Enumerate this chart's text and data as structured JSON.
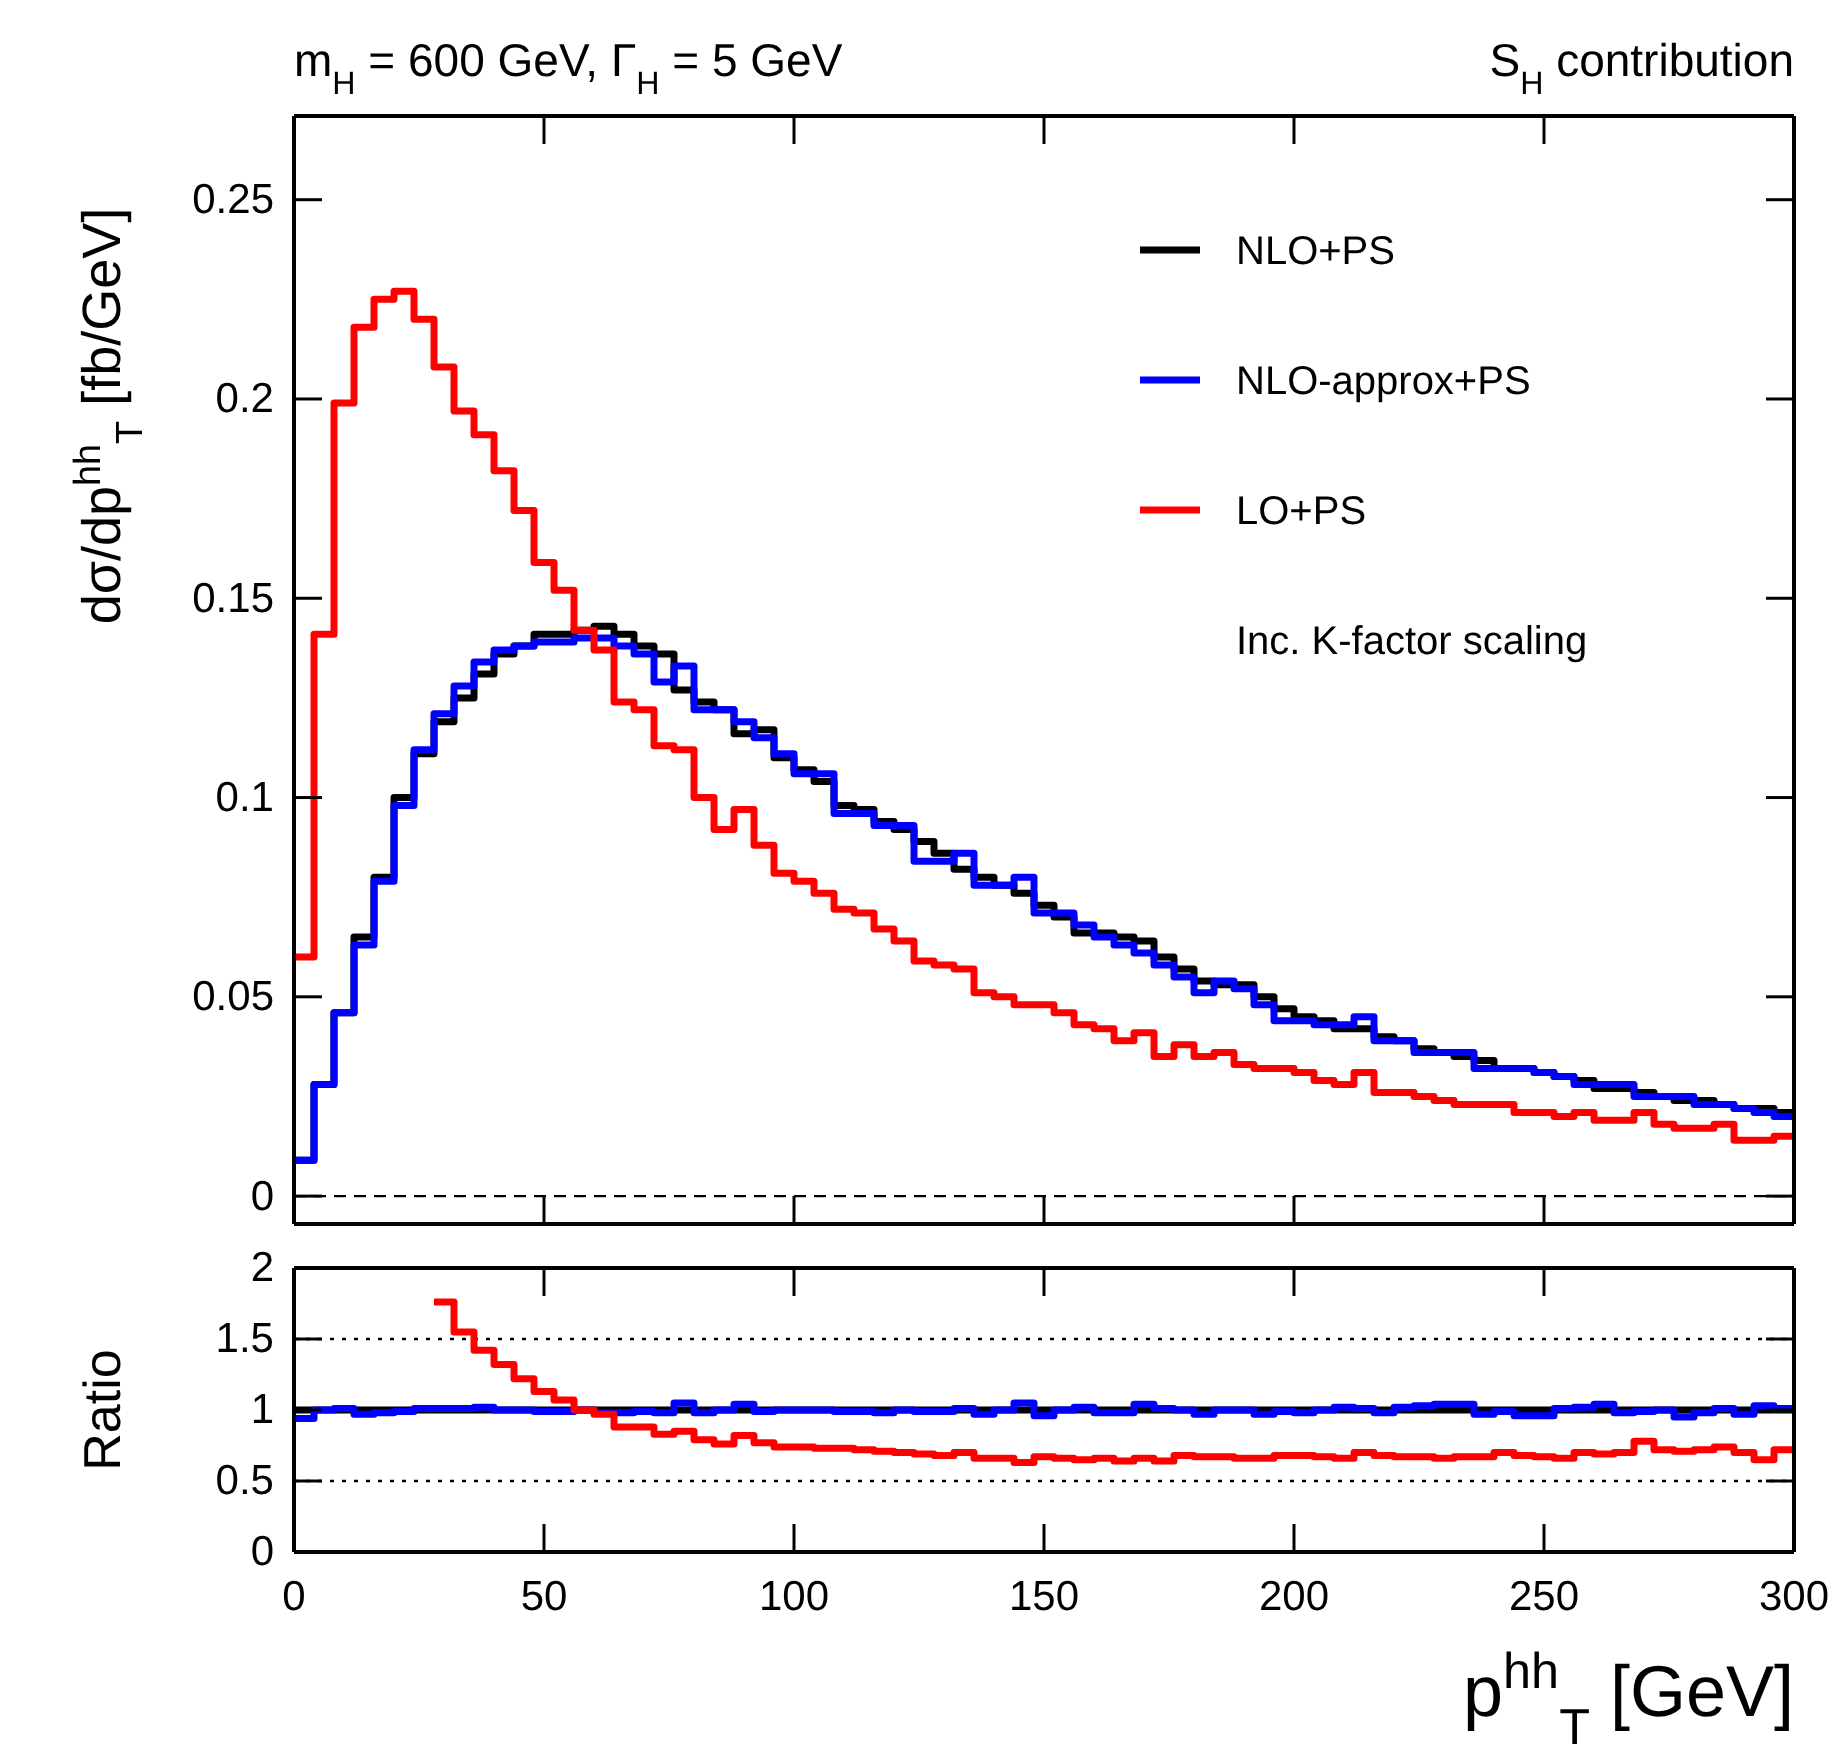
{
  "chart_data": [
    {
      "type": "histogram",
      "title": "m$_{H}$ = 600 GeV, Γ$_{H}$ = 5 GeV",
      "subtitle": "S$_{H}$ contribution",
      "ylabel": "dσ/dp$^{hh}$$_{T}$ [fb/GeV]",
      "annotations": [
        "Inc. K-factor scaling"
      ],
      "legend": "top right",
      "tick_labels": "y",
      "xlim": [
        0,
        300
      ],
      "xticks": [
        0,
        50,
        100,
        150,
        200,
        250,
        300
      ],
      "ylim": [
        -0.007,
        0.271
      ],
      "yticks": [
        0,
        0.05,
        0.1,
        0.15,
        0.2,
        0.25
      ],
      "ref_lines": [
        {
          "axis": "y",
          "value": 0,
          "line_style": "dashed",
          "color": "#000000"
        }
      ],
      "bins": [
        0,
        4,
        8,
        12,
        16,
        20,
        24,
        28,
        32,
        36,
        40,
        44,
        48,
        52,
        56,
        60,
        64,
        68,
        72,
        76,
        80,
        84,
        88,
        92,
        96,
        100,
        104,
        108,
        112,
        116,
        120,
        124,
        128,
        132,
        136,
        140,
        144,
        148,
        152,
        156,
        160,
        164,
        168,
        172,
        176,
        180,
        184,
        188,
        192,
        196,
        200,
        204,
        208,
        212,
        216,
        220,
        224,
        228,
        232,
        236,
        240,
        244,
        248,
        252,
        256,
        260,
        264,
        268,
        272,
        276,
        280,
        284,
        288,
        292,
        296,
        300
      ],
      "series": [
        {
          "name": "NLO+PS",
          "color": "#000000",
          "values": [
            0.009,
            0.028,
            0.046,
            0.065,
            0.08,
            0.1,
            0.111,
            0.119,
            0.125,
            0.131,
            0.136,
            0.138,
            0.141,
            0.141,
            0.142,
            0.143,
            0.141,
            0.138,
            0.136,
            0.127,
            0.124,
            0.122,
            0.116,
            0.117,
            0.11,
            0.107,
            0.104,
            0.098,
            0.097,
            0.094,
            0.092,
            0.089,
            0.086,
            0.082,
            0.08,
            0.078,
            0.076,
            0.073,
            0.07,
            0.066,
            0.066,
            0.065,
            0.064,
            0.06,
            0.057,
            0.054,
            0.053,
            0.053,
            0.05,
            0.047,
            0.045,
            0.044,
            0.042,
            0.042,
            0.04,
            0.039,
            0.037,
            0.036,
            0.035,
            0.034,
            0.032,
            0.032,
            0.031,
            0.03,
            0.029,
            0.027,
            0.027,
            0.026,
            0.025,
            0.024,
            0.024,
            0.023,
            0.022,
            0.022,
            0.021
          ]
        },
        {
          "name": "NLO-approx+PS",
          "color": "#0000ff",
          "values": [
            0.009,
            0.028,
            0.046,
            0.063,
            0.079,
            0.098,
            0.112,
            0.121,
            0.128,
            0.134,
            0.137,
            0.138,
            0.139,
            0.139,
            0.14,
            0.14,
            0.138,
            0.136,
            0.129,
            0.133,
            0.122,
            0.122,
            0.119,
            0.115,
            0.111,
            0.106,
            0.106,
            0.096,
            0.096,
            0.093,
            0.093,
            0.084,
            0.084,
            0.086,
            0.078,
            0.078,
            0.08,
            0.071,
            0.071,
            0.068,
            0.065,
            0.063,
            0.061,
            0.058,
            0.055,
            0.051,
            0.054,
            0.052,
            0.048,
            0.044,
            0.044,
            0.043,
            0.043,
            0.045,
            0.039,
            0.039,
            0.036,
            0.036,
            0.036,
            0.032,
            0.032,
            0.032,
            0.031,
            0.03,
            0.028,
            0.028,
            0.028,
            0.025,
            0.025,
            0.025,
            0.023,
            0.023,
            0.022,
            0.021,
            0.02
          ]
        },
        {
          "name": "LO+PS",
          "color": "#ff0000",
          "values": [
            0.06,
            0.141,
            0.199,
            0.218,
            0.225,
            0.227,
            0.22,
            0.208,
            0.197,
            0.191,
            0.182,
            0.172,
            0.159,
            0.152,
            0.142,
            0.137,
            0.124,
            0.122,
            0.113,
            0.112,
            0.1,
            0.092,
            0.097,
            0.088,
            0.081,
            0.079,
            0.076,
            0.072,
            0.071,
            0.067,
            0.064,
            0.059,
            0.058,
            0.057,
            0.051,
            0.05,
            0.048,
            0.048,
            0.046,
            0.043,
            0.042,
            0.039,
            0.041,
            0.035,
            0.038,
            0.035,
            0.036,
            0.033,
            0.032,
            0.032,
            0.031,
            0.029,
            0.028,
            0.031,
            0.026,
            0.026,
            0.025,
            0.024,
            0.023,
            0.023,
            0.023,
            0.021,
            0.021,
            0.02,
            0.021,
            0.019,
            0.019,
            0.021,
            0.018,
            0.017,
            0.017,
            0.018,
            0.014,
            0.014,
            0.015
          ]
        }
      ]
    },
    {
      "type": "histogram",
      "ylabel": "Ratio",
      "xlabel": "p$^{hh}$$_{T}$ [GeV]",
      "xlim": [
        0,
        300
      ],
      "xticks": [
        0,
        50,
        100,
        150,
        200,
        250,
        300
      ],
      "ylim": [
        0,
        2
      ],
      "yticks": [
        0,
        0.5,
        1,
        1.5,
        2
      ],
      "ref_lines": [
        {
          "axis": "y",
          "value": 0.5,
          "line_style": "dotted",
          "color": "#000000"
        },
        {
          "axis": "y",
          "value": 1.5,
          "line_style": "dotted",
          "color": "#000000"
        }
      ],
      "bins": [
        0,
        4,
        8,
        12,
        16,
        20,
        24,
        28,
        32,
        36,
        40,
        44,
        48,
        52,
        56,
        60,
        64,
        68,
        72,
        76,
        80,
        84,
        88,
        92,
        96,
        100,
        104,
        108,
        112,
        116,
        120,
        124,
        128,
        132,
        136,
        140,
        144,
        148,
        152,
        156,
        160,
        164,
        168,
        172,
        176,
        180,
        184,
        188,
        192,
        196,
        200,
        204,
        208,
        212,
        216,
        220,
        224,
        228,
        232,
        236,
        240,
        244,
        248,
        252,
        256,
        260,
        264,
        268,
        272,
        276,
        280,
        284,
        288,
        292,
        296,
        300
      ],
      "series": [
        {
          "color": "#000000",
          "values": [
            1,
            1,
            1,
            1,
            1,
            1,
            1,
            1,
            1,
            1,
            1,
            1,
            1,
            1,
            1,
            1,
            1,
            1,
            1,
            1,
            1,
            1,
            1,
            1,
            1,
            1,
            1,
            1,
            1,
            1,
            1,
            1,
            1,
            1,
            1,
            1,
            1,
            1,
            1,
            1,
            1,
            1,
            1,
            1,
            1,
            1,
            1,
            1,
            1,
            1,
            1,
            1,
            1,
            1,
            1,
            1,
            1,
            1,
            1,
            1,
            1,
            1,
            1,
            1,
            1,
            1,
            1,
            1,
            1,
            1,
            1,
            1,
            1,
            1,
            1
          ]
        },
        {
          "color": "#0000ff",
          "values": [
            0.94,
            1.0,
            1.01,
            0.97,
            0.98,
            0.99,
            1.01,
            1.01,
            1.01,
            1.02,
            1.0,
            1.0,
            0.99,
            0.99,
            1.0,
            0.98,
            0.98,
            0.99,
            0.98,
            1.05,
            0.98,
            1.0,
            1.04,
            0.99,
            1.0,
            1.0,
            1.0,
            0.99,
            0.99,
            0.98,
            1.0,
            0.99,
            0.99,
            1.01,
            0.97,
            1.0,
            1.05,
            0.96,
            1.0,
            1.02,
            0.98,
            0.98,
            1.04,
            1.01,
            1.0,
            0.97,
            1.0,
            1.0,
            0.97,
            0.99,
            0.98,
            1.0,
            1.02,
            1.01,
            0.98,
            1.02,
            1.03,
            1.04,
            1.04,
            0.97,
            0.99,
            0.96,
            0.96,
            1.01,
            1.02,
            1.04,
            0.98,
            0.99,
            1.0,
            0.95,
            0.98,
            1.01,
            0.97,
            1.03,
            1.01
          ]
        },
        {
          "color": "#ff0000",
          "bins": [
            28,
            32,
            36,
            40,
            44,
            48,
            52,
            56,
            60,
            64,
            68,
            72,
            76,
            80,
            84,
            88,
            92,
            96,
            100,
            104,
            108,
            112,
            116,
            120,
            124,
            128,
            132,
            136,
            140,
            144,
            148,
            152,
            156,
            160,
            164,
            168,
            172,
            176,
            180,
            184,
            188,
            192,
            196,
            200,
            204,
            208,
            212,
            216,
            220,
            224,
            228,
            232,
            236,
            240,
            244,
            248,
            252,
            256,
            260,
            264,
            268,
            272,
            276,
            280,
            284,
            288,
            292,
            296,
            300
          ],
          "values": [
            1.76,
            1.55,
            1.42,
            1.32,
            1.22,
            1.13,
            1.07,
            1.0,
            0.97,
            0.88,
            0.88,
            0.83,
            0.85,
            0.79,
            0.76,
            0.82,
            0.77,
            0.74,
            0.74,
            0.73,
            0.73,
            0.72,
            0.71,
            0.7,
            0.69,
            0.68,
            0.7,
            0.66,
            0.66,
            0.63,
            0.67,
            0.66,
            0.65,
            0.66,
            0.64,
            0.66,
            0.64,
            0.68,
            0.67,
            0.67,
            0.66,
            0.66,
            0.68,
            0.68,
            0.67,
            0.66,
            0.7,
            0.68,
            0.67,
            0.67,
            0.66,
            0.67,
            0.67,
            0.7,
            0.68,
            0.67,
            0.66,
            0.7,
            0.69,
            0.7,
            0.78,
            0.72,
            0.71,
            0.72,
            0.74,
            0.7,
            0.65,
            0.72
          ]
        }
      ]
    }
  ]
}
